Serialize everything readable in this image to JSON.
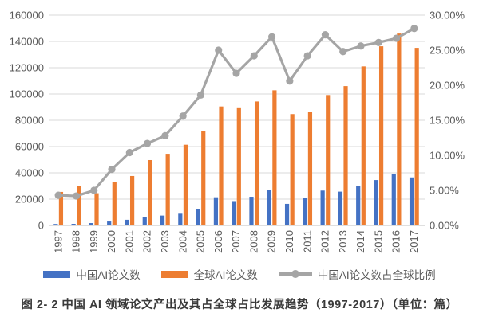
{
  "figure": {
    "caption": "图 2- 2 中国 AI 领域论文产出及其占全球占比发展趋势（1997-2017）（单位：篇）"
  },
  "chart_data": {
    "type": "combo-bar-line",
    "title": "",
    "categories": [
      "1997",
      "1998",
      "1999",
      "2000",
      "2001",
      "2002",
      "2003",
      "2004",
      "2005",
      "2006",
      "2007",
      "2008",
      "2009",
      "2010",
      "2011",
      "2012",
      "2013",
      "2014",
      "2015",
      "2016",
      "2017"
    ],
    "series": [
      {
        "name": "中国AI论文数",
        "type": "bar",
        "axis": "left",
        "color": "#4472C4",
        "values": [
          1100,
          1200,
          1800,
          3000,
          4300,
          6100,
          7500,
          8900,
          12500,
          21400,
          18500,
          21800,
          26700,
          16400,
          21000,
          26500,
          25700,
          29700,
          34500,
          39000,
          36500
        ]
      },
      {
        "name": "全球AI论文数",
        "type": "bar",
        "axis": "left",
        "color": "#ED7D31",
        "values": [
          25500,
          29800,
          24500,
          33200,
          37600,
          49700,
          54500,
          61400,
          72100,
          90500,
          89800,
          94300,
          102800,
          84700,
          86300,
          99200,
          106000,
          121000,
          136300,
          146000,
          135100
        ]
      },
      {
        "name": "中国AI论文数占全球比例",
        "type": "line",
        "axis": "right",
        "color": "#A5A5A5",
        "values": [
          4.3,
          4.2,
          5.0,
          8.0,
          10.4,
          11.7,
          12.8,
          15.6,
          18.6,
          25.0,
          21.7,
          24.2,
          26.9,
          20.6,
          24.2,
          27.2,
          24.8,
          25.6,
          26.1,
          26.7,
          28.1
        ]
      }
    ],
    "left_axis": {
      "min": 0,
      "max": 160000,
      "step": 20000,
      "tick_labels": [
        "0",
        "20000",
        "40000",
        "60000",
        "80000",
        "100000",
        "120000",
        "140000",
        "160000"
      ]
    },
    "right_axis": {
      "min": 0,
      "max": 30,
      "step": 5,
      "tick_labels": [
        "0.00%",
        "5.00%",
        "10.00%",
        "15.00%",
        "20.00%",
        "25.00%",
        "30.00%"
      ]
    },
    "grid": true,
    "legend_position": "bottom",
    "colors": {
      "china_bar": "#4472C4",
      "global_bar": "#ED7D31",
      "share_line": "#A5A5A5",
      "gridline": "#D9D9D9",
      "axis_text": "#595959"
    }
  }
}
